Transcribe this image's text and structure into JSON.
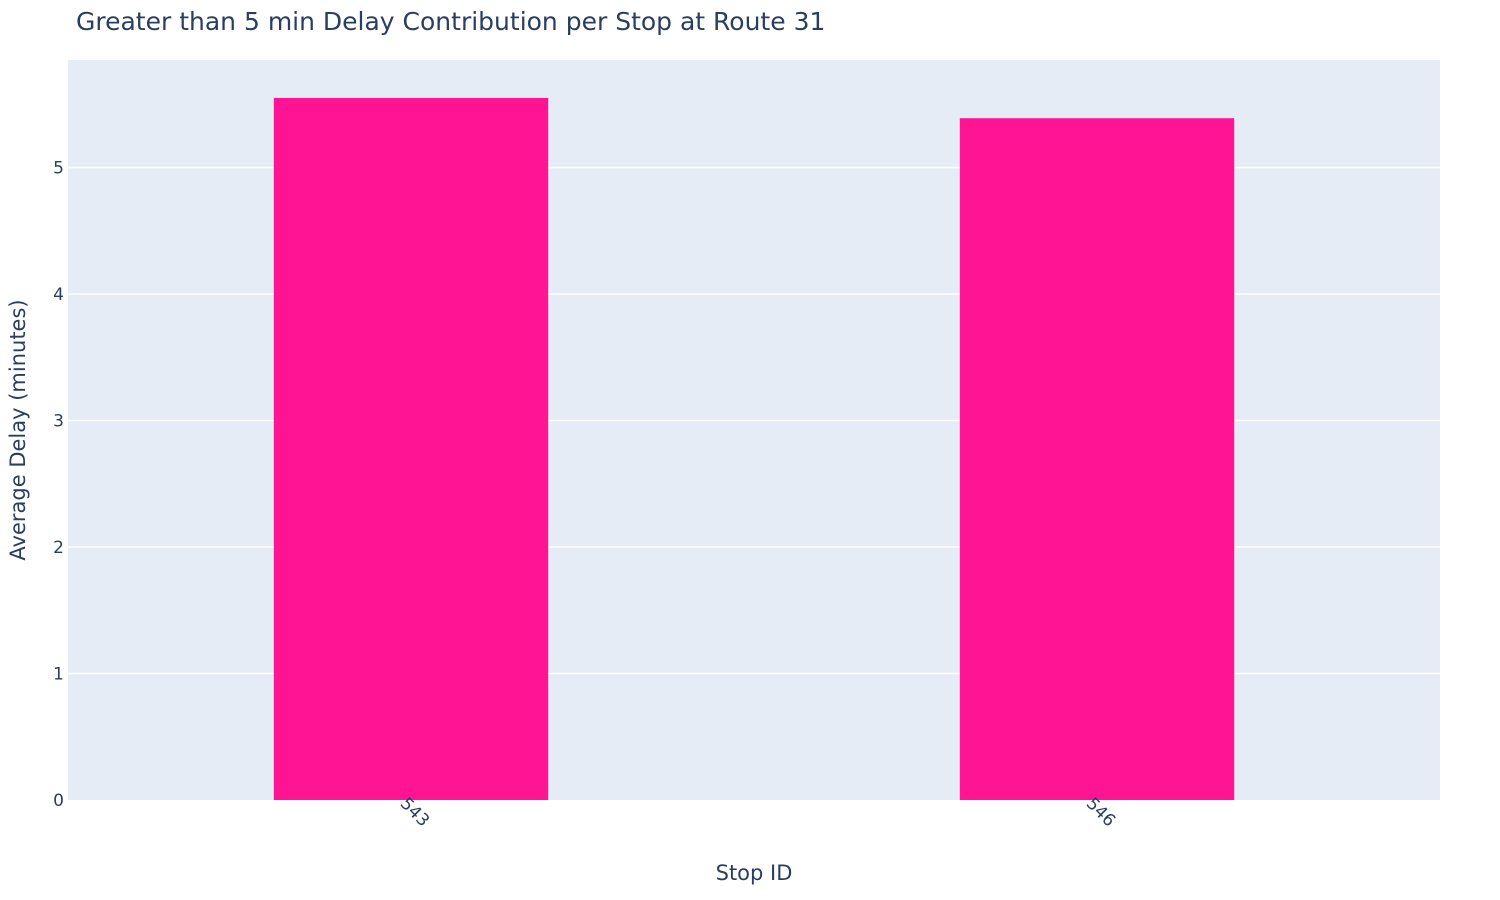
{
  "chart_data": {
    "type": "bar",
    "title": "Greater than 5 min Delay Contribution per Stop at Route 31",
    "xlabel": "Stop ID",
    "ylabel": "Average Delay (minutes)",
    "categories": [
      "543",
      "546"
    ],
    "values": [
      5.55,
      5.39
    ],
    "ylim": [
      0,
      5.85
    ],
    "yticks": [
      0,
      1,
      2,
      3,
      4,
      5
    ],
    "grid": true,
    "colors": {
      "bar": "#ff1493",
      "plot_background": "#e5ecf6",
      "grid": "#ffffff",
      "text": "#2a3f5f"
    }
  }
}
